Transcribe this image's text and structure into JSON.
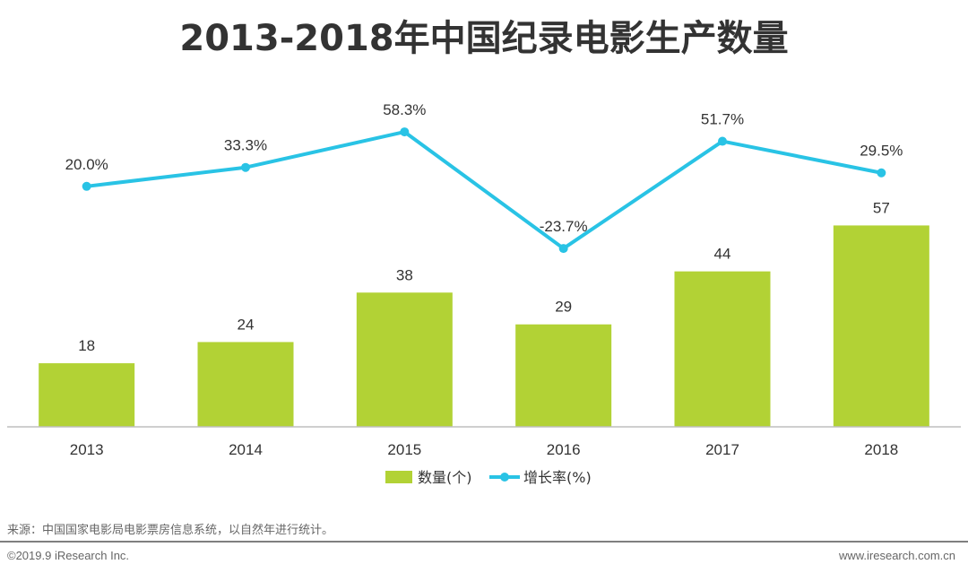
{
  "title": "2013-2018年中国纪录电影生产数量",
  "chart_data": {
    "type": "bar+line",
    "categories": [
      "2013",
      "2014",
      "2015",
      "2016",
      "2017",
      "2018"
    ],
    "series": [
      {
        "name": "数量(个)",
        "type": "bar",
        "color": "#b2d235",
        "values": [
          18,
          24,
          38,
          29,
          44,
          57
        ],
        "labels": [
          "18",
          "24",
          "38",
          "29",
          "44",
          "57"
        ]
      },
      {
        "name": "增长率(%)",
        "type": "line",
        "color": "#29c3e5",
        "values": [
          20.0,
          33.3,
          58.3,
          -23.7,
          51.7,
          29.5
        ],
        "labels": [
          "20.0%",
          "33.3%",
          "58.3%",
          "-23.7%",
          "51.7%",
          "29.5%"
        ]
      }
    ],
    "legend_position": "bottom-center",
    "bar_ylim": [
      0,
      70
    ],
    "line_ylim": [
      -40,
      65
    ]
  },
  "source": "来源：中国国家电影局电影票房信息系统，以自然年进行统计。",
  "copyright": "©2019.9 iResearch Inc.",
  "website": "www.iresearch.com.cn"
}
